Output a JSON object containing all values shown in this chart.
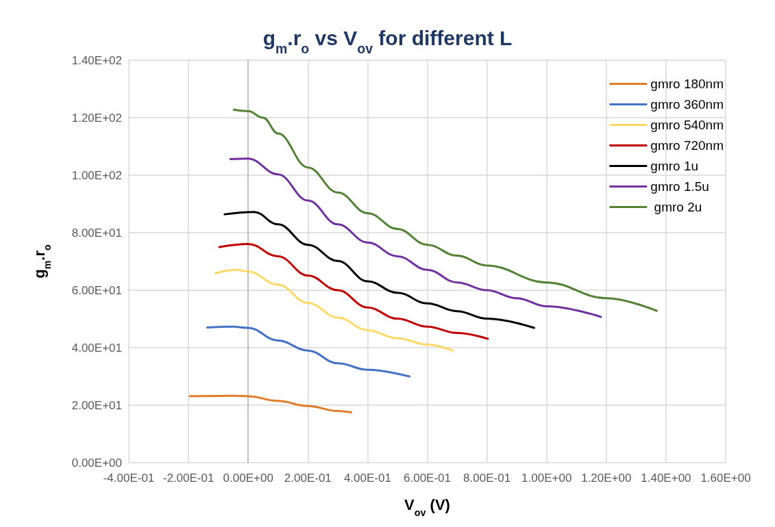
{
  "chart_data": {
    "type": "line",
    "title": "g$_{m}$.r$_{o}$ vs V$_{ov}$ for different L",
    "xlabel": "V$_{ov}$ (V)",
    "ylabel": "g$_{m}$.r$_{o}$",
    "xlim": [
      -0.4,
      1.6
    ],
    "ylim": [
      0,
      140
    ],
    "xticks": [
      {
        "value": -0.4,
        "label": "-4.00E-01"
      },
      {
        "value": -0.2,
        "label": "-2.00E-01"
      },
      {
        "value": 0,
        "label": "0.00E+00"
      },
      {
        "value": 0.2,
        "label": "2.00E-01"
      },
      {
        "value": 0.4,
        "label": "4.00E-01"
      },
      {
        "value": 0.6,
        "label": "6.00E-01"
      },
      {
        "value": 0.8,
        "label": "8.00E-01"
      },
      {
        "value": 1.0,
        "label": "1.00E+00"
      },
      {
        "value": 1.2,
        "label": "1.20E+00"
      },
      {
        "value": 1.4,
        "label": "1.40E+00"
      },
      {
        "value": 1.6,
        "label": "1.60E+00"
      }
    ],
    "yticks": [
      {
        "value": 0,
        "label": "0.00E+00"
      },
      {
        "value": 20,
        "label": "2.00E+01"
      },
      {
        "value": 40,
        "label": "4.00E+01"
      },
      {
        "value": 60,
        "label": "6.00E+01"
      },
      {
        "value": 80,
        "label": "8.00E+01"
      },
      {
        "value": 100,
        "label": "1.00E+02"
      },
      {
        "value": 120,
        "label": "1.20E+02"
      },
      {
        "value": 140,
        "label": "1.40E+02"
      }
    ],
    "grid": true,
    "legend": "top right",
    "marker": "none",
    "line_style": "solid",
    "series": [
      {
        "name": "gmro 180nm",
        "color": "#e07b28",
        "x": [
          -0.196,
          -0.1,
          -0.05,
          0,
          0.1,
          0.2,
          0.3,
          0.345
        ],
        "values": [
          23.1,
          23.2,
          23.3,
          23.1,
          21.5,
          19.7,
          18.0,
          17.5
        ]
      },
      {
        "name": "gmro 360nm",
        "color": "#4472c4",
        "x": [
          -0.137,
          -0.05,
          0,
          0.1,
          0.2,
          0.3,
          0.4,
          0.54
        ],
        "values": [
          47.0,
          47.3,
          46.9,
          42.5,
          39.0,
          34.6,
          32.3,
          30.0
        ]
      },
      {
        "name": "gmro 540nm",
        "color": "#ffd966",
        "x": [
          -0.11,
          -0.04,
          0,
          0.1,
          0.2,
          0.3,
          0.4,
          0.5,
          0.6,
          0.685
        ],
        "values": [
          65.9,
          67.1,
          66.5,
          61.9,
          55.6,
          50.5,
          46.1,
          43.3,
          41.1,
          39.0
        ]
      },
      {
        "name": "gmro 720nm",
        "color": "#c00000",
        "x": [
          -0.097,
          0,
          0.1,
          0.2,
          0.3,
          0.4,
          0.5,
          0.6,
          0.7,
          0.803
        ],
        "values": [
          75.0,
          76.1,
          71.8,
          65.1,
          60.0,
          54.0,
          50.1,
          47.3,
          45.1,
          43.1
        ]
      },
      {
        "name": "gmro 1u",
        "color": "#000000",
        "x": [
          -0.079,
          0.02,
          0.1,
          0.2,
          0.3,
          0.4,
          0.5,
          0.6,
          0.7,
          0.8,
          0.958
        ],
        "values": [
          86.4,
          87.2,
          82.9,
          75.8,
          70.2,
          63.1,
          59.1,
          55.4,
          52.7,
          50.1,
          46.9
        ]
      },
      {
        "name": "gmro 1.5u",
        "color": "#7030a0",
        "x": [
          -0.06,
          0,
          0.1,
          0.2,
          0.3,
          0.4,
          0.5,
          0.6,
          0.7,
          0.8,
          0.9,
          1.0,
          1.182
        ],
        "values": [
          105.6,
          105.8,
          100.3,
          91.2,
          82.9,
          76.6,
          71.8,
          67.1,
          62.7,
          60.0,
          57.2,
          54.4,
          50.7
        ]
      },
      {
        "name": " gmro 2u",
        "color": "#548235",
        "x": [
          -0.048,
          0,
          0.05,
          0.1,
          0.2,
          0.3,
          0.4,
          0.5,
          0.6,
          0.7,
          0.8,
          1.0,
          1.2,
          1.369
        ],
        "values": [
          122.8,
          122.3,
          120.0,
          114.5,
          102.7,
          94.0,
          86.8,
          81.3,
          75.8,
          72.0,
          68.6,
          62.7,
          57.2,
          52.8
        ]
      }
    ]
  }
}
